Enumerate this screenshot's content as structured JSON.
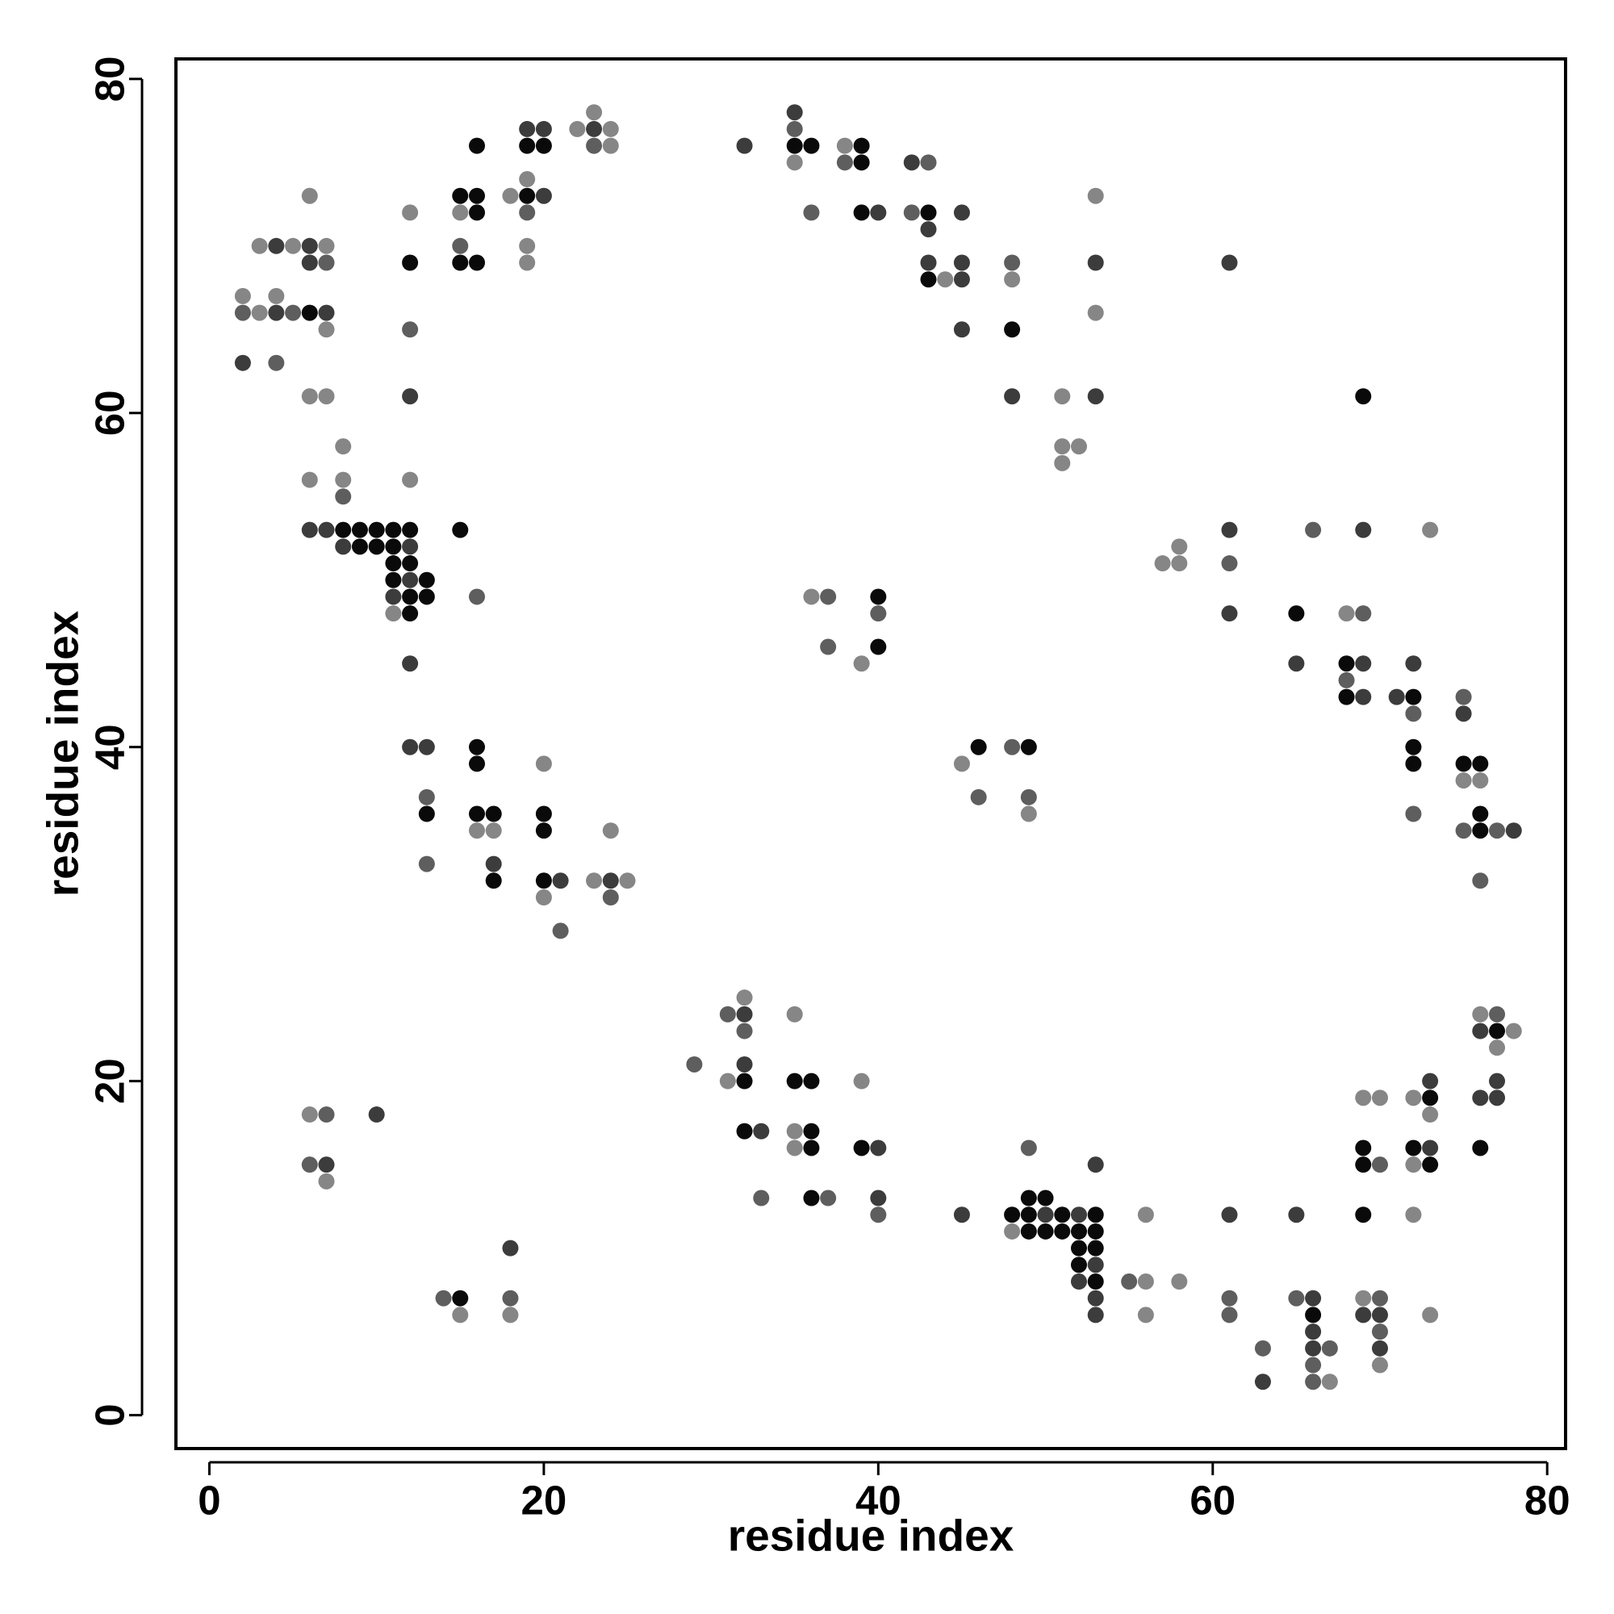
{
  "chart_data": {
    "type": "scatter",
    "x_label": "residue index",
    "y_label": "residue index",
    "xlim": [
      -2,
      81.1
    ],
    "ylim": [
      -2,
      81.2
    ],
    "xticks": [
      0,
      20,
      40,
      60,
      80
    ],
    "yticks": [
      0,
      20,
      40,
      60,
      80
    ],
    "series": [
      {
        "color": "#0a0a0a",
        "x": [
          16,
          19,
          20,
          35,
          36,
          39,
          39,
          15,
          16,
          19,
          16,
          39,
          43,
          12,
          15,
          16,
          43,
          6,
          48,
          69,
          8,
          9,
          10,
          11,
          12,
          15,
          9,
          10,
          11,
          11,
          12,
          11,
          13,
          12,
          13,
          40,
          12,
          65,
          40,
          68,
          68,
          72,
          16,
          46,
          49,
          72,
          16,
          72,
          75,
          76,
          13,
          16,
          17,
          20,
          76,
          20,
          76,
          17,
          20,
          77,
          32,
          35,
          36,
          73,
          32,
          36,
          36,
          39,
          69,
          72,
          76,
          69,
          73,
          36,
          49,
          50,
          48,
          49,
          51,
          53,
          69,
          49,
          50,
          51,
          52,
          53,
          52,
          53,
          52,
          53,
          15,
          66
        ],
        "values": [
          76,
          76,
          76,
          76,
          76,
          76,
          75,
          73,
          73,
          73,
          72,
          72,
          72,
          69,
          69,
          69,
          68,
          66,
          65,
          61,
          53,
          53,
          53,
          53,
          53,
          53,
          52,
          52,
          52,
          51,
          51,
          50,
          50,
          49,
          49,
          49,
          48,
          48,
          46,
          45,
          43,
          43,
          40,
          40,
          40,
          40,
          39,
          39,
          39,
          39,
          36,
          36,
          36,
          36,
          36,
          35,
          35,
          32,
          32,
          23,
          20,
          20,
          20,
          19,
          17,
          17,
          16,
          16,
          16,
          16,
          16,
          15,
          15,
          13,
          13,
          13,
          12,
          12,
          12,
          12,
          12,
          11,
          11,
          11,
          11,
          11,
          10,
          10,
          9,
          8,
          7,
          6
        ]
      },
      {
        "color": "#3c3c3c",
        "x": [
          35,
          19,
          20,
          23,
          32,
          42,
          20,
          40,
          45,
          43,
          4,
          6,
          6,
          43,
          45,
          53,
          61,
          45,
          4,
          7,
          45,
          2,
          12,
          48,
          53,
          6,
          7,
          61,
          69,
          8,
          12,
          12,
          11,
          61,
          12,
          65,
          69,
          72,
          69,
          71,
          75,
          12,
          13,
          78,
          17,
          21,
          24,
          32,
          76,
          32,
          73,
          77,
          76,
          77,
          10,
          33,
          40,
          73,
          7,
          53,
          40,
          45,
          50,
          52,
          61,
          65,
          18,
          53,
          52,
          53,
          66,
          53,
          69,
          70,
          66,
          66,
          70,
          63
        ],
        "values": [
          78,
          77,
          77,
          77,
          76,
          75,
          73,
          72,
          72,
          71,
          70,
          70,
          69,
          69,
          69,
          69,
          69,
          68,
          66,
          66,
          65,
          63,
          61,
          61,
          61,
          53,
          53,
          53,
          53,
          52,
          52,
          50,
          49,
          48,
          45,
          45,
          45,
          45,
          43,
          43,
          42,
          40,
          40,
          35,
          33,
          32,
          32,
          24,
          23,
          21,
          20,
          20,
          19,
          19,
          18,
          17,
          16,
          16,
          15,
          15,
          13,
          12,
          12,
          12,
          12,
          12,
          10,
          9,
          8,
          7,
          7,
          6,
          6,
          6,
          5,
          4,
          4,
          2
        ]
      },
      {
        "color": "#5e5e5e",
        "x": [
          35,
          23,
          38,
          43,
          19,
          36,
          42,
          15,
          7,
          48,
          2,
          5,
          12,
          4,
          8,
          66,
          61,
          16,
          37,
          40,
          69,
          37,
          68,
          75,
          72,
          48,
          13,
          46,
          49,
          72,
          75,
          77,
          13,
          76,
          24,
          21,
          31,
          77,
          32,
          29,
          7,
          49,
          6,
          70,
          33,
          37,
          40,
          55,
          14,
          18,
          61,
          65,
          70,
          61,
          70,
          63,
          67,
          66,
          66
        ],
        "values": [
          77,
          76,
          75,
          75,
          72,
          72,
          72,
          70,
          69,
          69,
          66,
          66,
          65,
          63,
          55,
          53,
          51,
          49,
          49,
          48,
          48,
          46,
          44,
          43,
          42,
          40,
          37,
          37,
          37,
          36,
          35,
          35,
          33,
          32,
          31,
          29,
          24,
          24,
          23,
          21,
          18,
          16,
          15,
          15,
          13,
          13,
          12,
          8,
          7,
          7,
          7,
          7,
          7,
          6,
          5,
          4,
          4,
          3,
          2
        ]
      },
      {
        "color": "#868686",
        "x": [
          23,
          22,
          24,
          24,
          38,
          35,
          19,
          6,
          18,
          53,
          12,
          15,
          3,
          5,
          7,
          19,
          19,
          44,
          48,
          2,
          4,
          3,
          53,
          7,
          6,
          7,
          51,
          8,
          51,
          52,
          51,
          6,
          8,
          12,
          73,
          58,
          57,
          58,
          36,
          11,
          68,
          39,
          20,
          45,
          75,
          76,
          49,
          16,
          17,
          24,
          23,
          25,
          20,
          32,
          35,
          76,
          78,
          77,
          31,
          39,
          69,
          70,
          72,
          6,
          73,
          35,
          35,
          72,
          7,
          56,
          72,
          48,
          56,
          58,
          69,
          15,
          18,
          56,
          73,
          70,
          67
        ],
        "values": [
          78,
          77,
          77,
          76,
          76,
          75,
          74,
          73,
          73,
          73,
          72,
          72,
          70,
          70,
          70,
          70,
          69,
          68,
          68,
          67,
          67,
          66,
          66,
          65,
          61,
          61,
          61,
          58,
          58,
          58,
          57,
          56,
          56,
          56,
          53,
          52,
          51,
          51,
          49,
          48,
          48,
          45,
          39,
          39,
          38,
          38,
          36,
          35,
          35,
          35,
          32,
          32,
          31,
          25,
          24,
          24,
          23,
          22,
          20,
          20,
          19,
          19,
          19,
          18,
          18,
          17,
          16,
          15,
          14,
          12,
          12,
          11,
          8,
          8,
          7,
          6,
          6,
          6,
          6,
          3,
          2
        ]
      }
    ]
  }
}
